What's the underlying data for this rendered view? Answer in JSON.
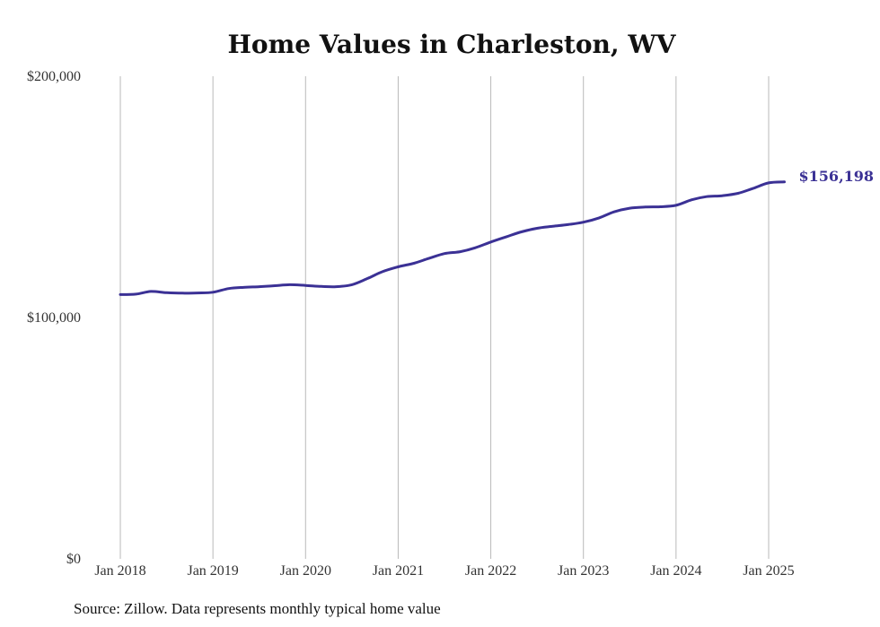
{
  "chart_data": {
    "type": "line",
    "title": "Home Values in Charleston, WV",
    "xlabel": "",
    "ylabel": "",
    "ylim": [
      0,
      200000
    ],
    "yticks": [
      {
        "value": 0,
        "label": "$0"
      },
      {
        "value": 100000,
        "label": "$100,000"
      },
      {
        "value": 200000,
        "label": "$200,000"
      }
    ],
    "xticks": [
      {
        "value": 2018.0,
        "label": "Jan 2018"
      },
      {
        "value": 2019.0,
        "label": "Jan 2019"
      },
      {
        "value": 2020.0,
        "label": "Jan 2020"
      },
      {
        "value": 2021.0,
        "label": "Jan 2021"
      },
      {
        "value": 2022.0,
        "label": "Jan 2022"
      },
      {
        "value": 2023.0,
        "label": "Jan 2023"
      },
      {
        "value": 2024.0,
        "label": "Jan 2024"
      },
      {
        "value": 2025.0,
        "label": "Jan 2025"
      }
    ],
    "vertical_grid": true,
    "line_color": "#3b3195",
    "series": [
      {
        "x": [
          2018.0,
          2018.17,
          2018.33,
          2018.5,
          2018.67,
          2018.83,
          2019.0,
          2019.17,
          2019.33,
          2019.5,
          2019.67,
          2019.83,
          2020.0,
          2020.17,
          2020.33,
          2020.5,
          2020.67,
          2020.83,
          2021.0,
          2021.17,
          2021.33,
          2021.5,
          2021.67,
          2021.83,
          2022.0,
          2022.17,
          2022.33,
          2022.5,
          2022.67,
          2022.83,
          2023.0,
          2023.17,
          2023.33,
          2023.5,
          2023.67,
          2023.83,
          2024.0,
          2024.17,
          2024.33,
          2024.5,
          2024.67,
          2024.83,
          2025.0,
          2025.17
        ],
        "values": [
          109500,
          109700,
          110800,
          110300,
          110100,
          110200,
          110500,
          112000,
          112500,
          112800,
          113200,
          113600,
          113300,
          112900,
          112800,
          113600,
          116200,
          119000,
          121000,
          122500,
          124500,
          126500,
          127300,
          128900,
          131300,
          133500,
          135500,
          137000,
          137800,
          138500,
          139500,
          141300,
          143800,
          145300,
          145800,
          145900,
          146500,
          148800,
          150100,
          150500,
          151500,
          153500,
          155800,
          156198
        ]
      }
    ],
    "end_label": "$156,198",
    "source_note": "Source: Zillow. Data represents monthly typical home value"
  }
}
